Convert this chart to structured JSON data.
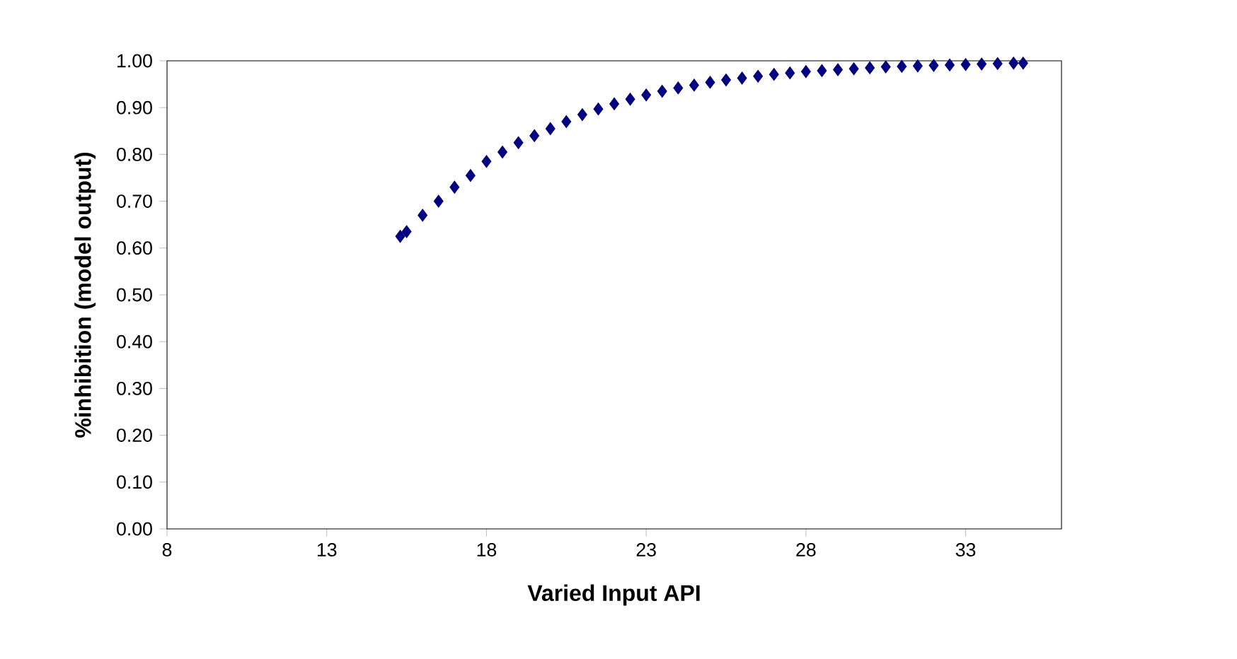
{
  "chart_data": {
    "type": "scatter",
    "xlabel": "Varied Input API",
    "ylabel": "%inhibition (model output)",
    "xlim": [
      8,
      36
    ],
    "xticks": [
      8,
      13,
      18,
      23,
      28,
      33
    ],
    "ylim": [
      0,
      1
    ],
    "yticks": [
      {
        "value": 0,
        "label": "0.00"
      },
      {
        "value": 0.1,
        "label": "0.10"
      },
      {
        "value": 0.2,
        "label": "0.20"
      },
      {
        "value": 0.3,
        "label": "0.30"
      },
      {
        "value": 0.4,
        "label": "0.40"
      },
      {
        "value": 0.5,
        "label": "0.50"
      },
      {
        "value": 0.6,
        "label": "0.60"
      },
      {
        "value": 0.7,
        "label": "0.70"
      },
      {
        "value": 0.8,
        "label": "0.80"
      },
      {
        "value": 0.9,
        "label": "0.90"
      },
      {
        "value": 1,
        "label": "1.00"
      }
    ],
    "marker": "diamond",
    "series": [
      {
        "color": "#000080",
        "x": [
          15.3,
          15.5,
          16,
          16.5,
          17,
          17.5,
          18,
          18.5,
          19,
          19.5,
          20,
          20.5,
          21,
          21.5,
          22,
          22.5,
          23,
          23.5,
          24,
          24.5,
          25,
          25.5,
          26,
          26.5,
          27,
          27.5,
          28,
          28.5,
          29,
          29.5,
          30,
          30.5,
          31,
          31.5,
          32,
          32.5,
          33,
          33.5,
          34,
          34.5,
          34.8
        ],
        "values": [
          0.625,
          0.635,
          0.67,
          0.7,
          0.73,
          0.755,
          0.785,
          0.805,
          0.825,
          0.84,
          0.855,
          0.87,
          0.885,
          0.897,
          0.908,
          0.918,
          0.927,
          0.935,
          0.942,
          0.948,
          0.954,
          0.959,
          0.963,
          0.967,
          0.971,
          0.974,
          0.977,
          0.979,
          0.981,
          0.983,
          0.985,
          0.987,
          0.988,
          0.989,
          0.99,
          0.991,
          0.992,
          0.993,
          0.994,
          0.995,
          0.995
        ]
      }
    ]
  }
}
